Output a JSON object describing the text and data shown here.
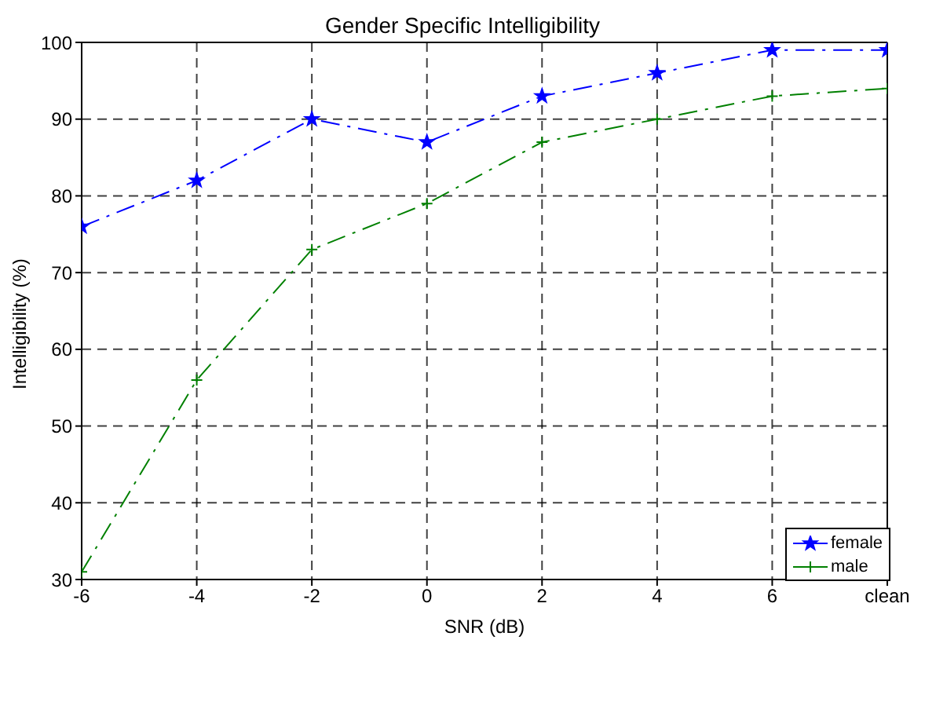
{
  "chart_data": {
    "type": "line",
    "title": "Gender Specific Intelligibility",
    "xlabel": "SNR (dB)",
    "ylabel": "Intelligibility (%)",
    "x": [
      -6,
      -4,
      -2,
      0,
      2,
      4,
      6,
      8
    ],
    "series": [
      {
        "name": "female",
        "color": "#0000ff",
        "marker": "star",
        "values": [
          76,
          82,
          90,
          87,
          93,
          96,
          99,
          99
        ]
      },
      {
        "name": "male",
        "color": "#008000",
        "marker": "cross",
        "values": [
          31,
          56,
          73,
          79,
          87,
          90,
          93,
          94
        ]
      }
    ],
    "xlim": [
      -6,
      8
    ],
    "xticks": [
      -6,
      -4,
      -2,
      0,
      2,
      4,
      6,
      {
        "value": 8,
        "label": "clean"
      }
    ],
    "ylim": [
      30,
      100
    ],
    "yticks": [
      30,
      40,
      50,
      60,
      70,
      80,
      90,
      100
    ],
    "grid": true,
    "legend": "bottom right",
    "line_style": "dashed"
  }
}
